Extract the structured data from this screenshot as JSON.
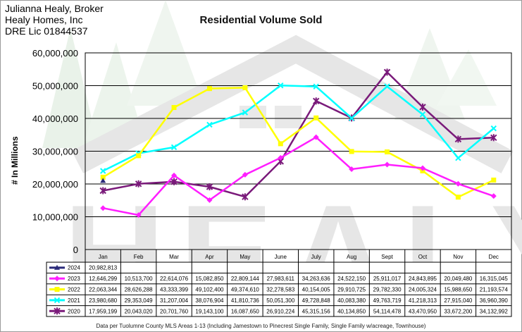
{
  "broker": {
    "name": "Julianna Healy, Broker",
    "company": "Healy Homes, Inc",
    "license": "DRE Lic 01844537"
  },
  "watermark_text": "HEALY",
  "footnote": "Data per Tuolumne County MLS Areas 1-13 (Including Jamestown to Pinecrest Single Family, Single Family w/acreage, Townhouse)",
  "chart_data": {
    "type": "line",
    "title": "Residential Volume Sold",
    "xlabel": "",
    "ylabel": "# In Millions",
    "ylim": [
      0,
      60000000
    ],
    "yticks": [
      0,
      10000000,
      20000000,
      30000000,
      40000000,
      50000000,
      60000000
    ],
    "ytick_labels": [
      "0",
      "10,000,000",
      "20,000,000",
      "30,000,000",
      "40,000,000",
      "50,000,000",
      "60,000,000"
    ],
    "grid": true,
    "categories": [
      "Jan",
      "Feb",
      "Mar",
      "Apr",
      "May",
      "June",
      "July",
      "Aug",
      "Sept",
      "Oct",
      "Nov",
      "Dec"
    ],
    "series": [
      {
        "name": "2024",
        "color": "#2b2b7a",
        "marker": "triangle",
        "values": [
          20982813,
          null,
          null,
          null,
          null,
          null,
          null,
          null,
          null,
          null,
          null,
          null
        ],
        "labels": [
          "20,982,813",
          "",
          "",
          "",
          "",
          "",
          "",
          "",
          "",
          "",
          "",
          ""
        ]
      },
      {
        "name": "2023",
        "color": "#ff1eff",
        "marker": "diamond",
        "values": [
          12646299,
          10513700,
          22614076,
          15082850,
          22809144,
          27983611,
          34263636,
          24522150,
          25911017,
          24843895,
          20049480,
          16315045
        ],
        "labels": [
          "12,646,299",
          "10,513,700",
          "22,614,076",
          "15,082,850",
          "22,809,144",
          "27,983,611",
          "34,263,636",
          "24,522,150",
          "25,911,017",
          "24,843,895",
          "20,049,480",
          "16,315,045"
        ]
      },
      {
        "name": "2022",
        "color": "#ffff00",
        "marker": "square",
        "values": [
          22063344,
          28626288,
          43333399,
          49102400,
          49374610,
          32278583,
          40154005,
          29910725,
          29782330,
          24005324,
          15988650,
          21193574
        ],
        "labels": [
          "22,063,344",
          "28,626,288",
          "43,333,399",
          "49,102,400",
          "49,374,610",
          "32,278,583",
          "40,154,005",
          "29,910,725",
          "29,782,330",
          "24,005,324",
          "15,988,650",
          "21,193,574"
        ]
      },
      {
        "name": "2021",
        "color": "#00ffff",
        "marker": "x",
        "values": [
          23980680,
          29353049,
          31207004,
          38076904,
          41810736,
          50051300,
          49728848,
          40083380,
          49763719,
          41218313,
          27915040,
          36960390
        ],
        "labels": [
          "23,980,680",
          "29,353,049",
          "31,207,004",
          "38,076,904",
          "41,810,736",
          "50,051,300",
          "49,728,848",
          "40,083,380",
          "49,763,719",
          "41,218,313",
          "27,915,040",
          "36,960,390"
        ]
      },
      {
        "name": "2020",
        "color": "#7a1a7a",
        "marker": "star",
        "values": [
          17959199,
          20043020,
          20701760,
          19143100,
          16087650,
          26910224,
          45315156,
          40134850,
          54114478,
          43470950,
          33672200,
          34132992
        ],
        "labels": [
          "17,959,199",
          "20,043,020",
          "20,701,760",
          "19,143,100",
          "16,087,650",
          "26,910,224",
          "45,315,156",
          "40,134,850",
          "54,114,478",
          "43,470,950",
          "33,672,200",
          "34,132,992"
        ]
      }
    ]
  }
}
